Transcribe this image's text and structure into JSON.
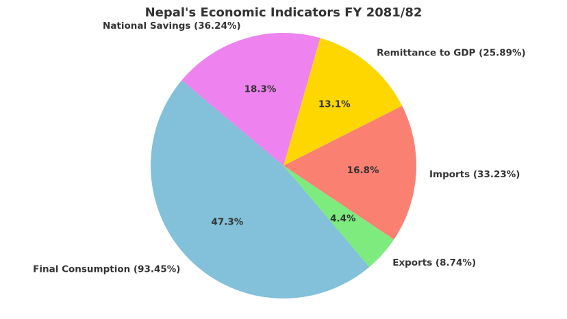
{
  "chart_data": {
    "type": "pie",
    "title": "Nepal's Economic Indicators FY 2081/82",
    "slices": [
      {
        "label": "Final Consumption (93.45%)",
        "value": 93.45,
        "pct_label": "47.3%",
        "color": "#82c1d9"
      },
      {
        "label": "Exports (8.74%)",
        "value": 8.74,
        "pct_label": "4.4%",
        "color": "#7deb7d"
      },
      {
        "label": "Imports (33.23%)",
        "value": 33.23,
        "pct_label": "16.8%",
        "color": "#fa8072"
      },
      {
        "label": "Remittance to GDP (25.89%)",
        "value": 25.89,
        "pct_label": "13.1%",
        "color": "#ffd700"
      },
      {
        "label": "National Savings (36.24%)",
        "value": 36.24,
        "pct_label": "18.3%",
        "color": "#ee82ee"
      }
    ],
    "start_angle_deg": 140,
    "direction": "counterclockwise"
  }
}
